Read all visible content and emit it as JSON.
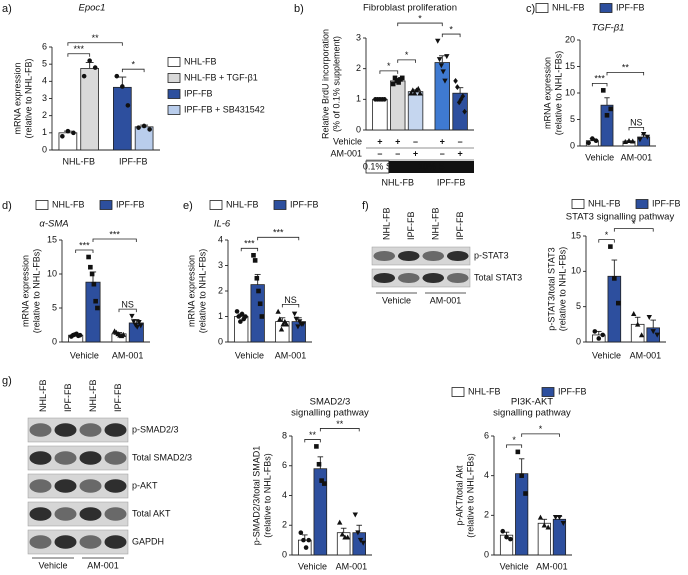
{
  "chart_data": [
    {
      "type": "bar",
      "panel": "a)",
      "title": "Epoc1",
      "ylabel": [
        "mRNA expression",
        "(relative to NHL-FB)"
      ],
      "ylim": [
        0,
        6
      ],
      "yticks": [
        0,
        1,
        2,
        3,
        4,
        5,
        6
      ],
      "legend": [
        {
          "name": "NHL-FB",
          "color": "#ffffff"
        },
        {
          "name": "NHL-FB + TGF-β1",
          "color": "#d9d9d9"
        },
        {
          "name": "IPF-FB",
          "color": "#2d4f9e"
        },
        {
          "name": "IPF-FB + SB431542",
          "color": "#b9cdec"
        }
      ],
      "groups": [
        {
          "label": "NHL-FB",
          "bars": [
            {
              "color": "#ffffff",
              "marker": "circle",
              "value": 1,
              "error": 0.1,
              "points": [
                0.8,
                1.1,
                1.0
              ]
            },
            {
              "color": "#d9d9d9",
              "marker": "circle",
              "value": 4.75,
              "error": 0.35,
              "points": [
                4.3,
                5.2,
                4.8
              ]
            }
          ]
        },
        {
          "label": "IPF-FB",
          "color": "#2a73c0",
          "bars": [
            {
              "color": "#2d4f9e",
              "marker": "circle",
              "value": 3.65,
              "error": 0.6,
              "points": [
                4.3,
                3.7,
                2.6
              ]
            },
            {
              "color": "#b9cdec",
              "marker": "circle",
              "value": 1.35,
              "error": 0.1,
              "points": [
                1.3,
                1.4,
                1.2
              ]
            }
          ]
        }
      ],
      "significance": [
        {
          "label": "***",
          "from": 0,
          "to": 1
        },
        {
          "label": "*",
          "from": 2,
          "to": 3
        },
        {
          "label": "**",
          "from": 0,
          "to": 2
        }
      ]
    },
    {
      "type": "bar",
      "panel": "b)",
      "title": "Fibroblast proliferation",
      "ylabel": [
        "Relative BrdU incorporation",
        "(% of 0.1% supplement)"
      ],
      "ylim": [
        0,
        3
      ],
      "yticks": [
        0,
        1,
        2,
        3
      ],
      "groups": [
        {
          "label": "NHL-FB",
          "bars": [
            {
              "color": "#ffffff",
              "marker": "circle",
              "value": 1,
              "error": 0.02,
              "points": [
                1.0,
                1.0,
                1.0,
                1.0,
                1.0
              ]
            },
            {
              "color": "#d9d9d9",
              "marker": "square",
              "value": 1.6,
              "error": 0.08,
              "points": [
                1.5,
                1.7,
                1.6,
                1.55,
                1.65,
                1.7
              ]
            },
            {
              "color": "#c5d6ef",
              "marker": "triangle",
              "value": 1.25,
              "error": 0.06,
              "points": [
                1.2,
                1.3,
                1.2,
                1.3,
                1.35,
                1.2
              ]
            }
          ]
        },
        {
          "label": "IPF-FB",
          "color": "#2a73c0",
          "bars": [
            {
              "color": "#3f7ad1",
              "marker": "triangle-down",
              "value": 2.2,
              "error": 0.22,
              "points": [
                2.9,
                2.3,
                2.1,
                1.9,
                1.6,
                2.4
              ]
            },
            {
              "color": "#2d4f9e",
              "marker": "diamond",
              "value": 1.2,
              "error": 0.18,
              "points": [
                1.6,
                1.4,
                0.9,
                1.0,
                1.1,
                0.6
              ]
            }
          ]
        }
      ],
      "table": {
        "rows": [
          {
            "label": "Vehicle",
            "cells": [
              "+",
              "+",
              "–",
              "+",
              "–"
            ]
          },
          {
            "label": "AM-001",
            "color": "#2a73c0",
            "cells": [
              "–",
              "–",
              "+",
              "–",
              "+"
            ]
          }
        ],
        "supplements": [
          "0.1% S",
          "10% S"
        ]
      },
      "significance": [
        {
          "label": "*",
          "from": 0,
          "to": 1
        },
        {
          "label": "*",
          "from": 1,
          "to": 2
        },
        {
          "label": "*",
          "from": 3,
          "to": 4
        },
        {
          "label": "*",
          "from": 1,
          "to": 3
        }
      ]
    },
    {
      "type": "bar",
      "panel": "c)",
      "title": "TGF-β1",
      "ylabel": [
        "mRNA expression",
        "(relative to NHL-FBs)"
      ],
      "ylim": [
        0,
        20
      ],
      "yticks": [
        0,
        5,
        10,
        15,
        20
      ],
      "legend": [
        {
          "name": "NHL-FB",
          "color": "#ffffff"
        },
        {
          "name": "IPF-FB",
          "color": "#2d4f9e"
        }
      ],
      "groups": [
        {
          "label": "Vehicle",
          "bars": [
            {
              "color": "#ffffff",
              "marker": "circle",
              "value": 1,
              "error": 0.4,
              "points": [
                0.6,
                1.4,
                1.0
              ]
            },
            {
              "color": "#2d4f9e",
              "marker": "square",
              "value": 7.7,
              "error": 1.4,
              "points": [
                10.5,
                5.8,
                7.0
              ]
            }
          ]
        },
        {
          "label": "AM-001",
          "color": "#2a73c0",
          "bars": [
            {
              "color": "#ffffff",
              "marker": "triangle",
              "value": 0.9,
              "error": 0.1,
              "points": [
                0.8,
                1.0,
                0.9
              ]
            },
            {
              "color": "#2d4f9e",
              "marker": "triangle-down",
              "value": 1.7,
              "error": 0.4,
              "points": [
                1.2,
                2.2,
                1.7
              ]
            }
          ]
        }
      ],
      "significance": [
        {
          "label": "***",
          "from": 0,
          "to": 1
        },
        {
          "label": "NS",
          "from": 2,
          "to": 3
        },
        {
          "label": "**",
          "from": 1,
          "to": 3
        }
      ]
    },
    {
      "type": "bar",
      "panel": "d)",
      "title": "α-SMA",
      "ylabel": [
        "mRNA expression",
        "(relative to NHL-FBs)"
      ],
      "ylim": [
        0,
        15
      ],
      "yticks": [
        0,
        5,
        10,
        15
      ],
      "legend": [
        {
          "name": "NHL-FB",
          "color": "#ffffff"
        },
        {
          "name": "IPF-FB",
          "color": "#2d4f9e"
        }
      ],
      "groups": [
        {
          "label": "Vehicle",
          "bars": [
            {
              "color": "#ffffff",
              "marker": "circle",
              "value": 1,
              "error": 0.1,
              "points": [
                0.8,
                1.0,
                1.1,
                1.2,
                0.9,
                1.0
              ]
            },
            {
              "color": "#2d4f9e",
              "marker": "square",
              "value": 8.8,
              "error": 1.5,
              "points": [
                12.5,
                11.0,
                10.0,
                8.5,
                6.0,
                5.0
              ]
            }
          ]
        },
        {
          "label": "AM-001",
          "color": "#2a73c0",
          "bars": [
            {
              "color": "#ffffff",
              "marker": "triangle",
              "value": 1.2,
              "error": 0.2,
              "points": [
                1.6,
                1.4,
                1.2,
                1.0,
                0.9,
                1.1
              ]
            },
            {
              "color": "#2d4f9e",
              "marker": "triangle-down",
              "value": 2.8,
              "error": 0.5,
              "points": [
                3.8,
                3.0,
                2.5,
                2.2,
                2.9,
                2.4
              ]
            }
          ]
        }
      ],
      "significance": [
        {
          "label": "***",
          "from": 0,
          "to": 1
        },
        {
          "label": "NS",
          "from": 2,
          "to": 3
        },
        {
          "label": "***",
          "from": 1,
          "to": 3
        }
      ]
    },
    {
      "type": "bar",
      "panel": "e)",
      "title": "IL-6",
      "ylabel": [
        "mRNA expression",
        "(relative to NHL-FBs)"
      ],
      "ylim": [
        0,
        4
      ],
      "yticks": [
        0,
        1,
        2,
        3,
        4
      ],
      "legend": [
        {
          "name": "NHL-FB",
          "color": "#ffffff"
        },
        {
          "name": "IPF-FB",
          "color": "#2d4f9e"
        }
      ],
      "groups": [
        {
          "label": "Vehicle",
          "bars": [
            {
              "color": "#ffffff",
              "marker": "circle",
              "value": 1,
              "error": 0.1,
              "points": [
                1.2,
                1.0,
                0.8,
                1.1,
                0.9,
                1.0
              ]
            },
            {
              "color": "#2d4f9e",
              "marker": "square",
              "value": 2.25,
              "error": 0.4,
              "points": [
                3.4,
                3.2,
                2.5,
                2.0,
                1.5,
                1.0
              ]
            }
          ]
        },
        {
          "label": "AM-001",
          "color": "#2a73c0",
          "bars": [
            {
              "color": "#ffffff",
              "marker": "triangle",
              "value": 0.8,
              "error": 0.15,
              "points": [
                1.2,
                0.9,
                0.5,
                0.7,
                0.8,
                0.7
              ]
            },
            {
              "color": "#2d4f9e",
              "marker": "triangle-down",
              "value": 0.8,
              "error": 0.15,
              "points": [
                1.1,
                0.9,
                0.6,
                0.8,
                0.7,
                0.7
              ]
            }
          ]
        }
      ],
      "significance": [
        {
          "label": "***",
          "from": 0,
          "to": 1
        },
        {
          "label": "NS",
          "from": 2,
          "to": 3
        },
        {
          "label": "***",
          "from": 1,
          "to": 3
        }
      ]
    },
    {
      "type": "blot",
      "panel": "f)",
      "lanes": [
        "NHL-FB",
        "IPF-FB",
        "NHL-FB",
        "IPF-FB"
      ],
      "bands": [
        "p-STAT3",
        "Total STAT3"
      ],
      "groups": [
        {
          "label": "Vehicle"
        },
        {
          "label": "AM-001",
          "color": "#2a73c0"
        }
      ]
    },
    {
      "type": "bar",
      "title": "STAT3 signalling pathway",
      "ylabel": [
        "p-STAT3/total STAT3",
        "(relative to NHL-FBs)"
      ],
      "ylim": [
        0,
        15
      ],
      "yticks": [
        0,
        5,
        10,
        15
      ],
      "legend": [
        {
          "name": "NHL-FB",
          "color": "#ffffff"
        },
        {
          "name": "IPF-FB",
          "color": "#2d4f9e"
        }
      ],
      "groups": [
        {
          "label": "Vehicle",
          "bars": [
            {
              "color": "#ffffff",
              "marker": "circle",
              "value": 1,
              "error": 0.5,
              "points": [
                1.5,
                0.5,
                1.0
              ]
            },
            {
              "color": "#2d4f9e",
              "marker": "square",
              "value": 9.3,
              "error": 2.3,
              "points": [
                13.5,
                9.0,
                5.5
              ]
            }
          ]
        },
        {
          "label": "AM-001",
          "color": "#2a73c0",
          "bars": [
            {
              "color": "#ffffff",
              "marker": "triangle",
              "value": 2.5,
              "error": 1.0,
              "points": [
                4.0,
                2.5,
                1.0
              ]
            },
            {
              "color": "#2d4f9e",
              "marker": "triangle-down",
              "value": 2.0,
              "error": 1.1,
              "points": [
                3.5,
                1.5,
                1.0
              ]
            }
          ]
        }
      ],
      "significance": [
        {
          "label": "*",
          "from": 0,
          "to": 1
        },
        {
          "label": "*",
          "from": 1,
          "to": 3
        }
      ]
    },
    {
      "type": "blot",
      "panel": "g)",
      "lanes": [
        "NHL-FB",
        "IPF-FB",
        "NHL-FB",
        "IPF-FB"
      ],
      "bands": [
        "p-SMAD2/3",
        "Total SMAD2/3",
        "p-AKT",
        "Total AKT",
        "GAPDH"
      ],
      "groups": [
        {
          "label": "Vehicle"
        },
        {
          "label": "AM-001",
          "color": "#2a73c0"
        }
      ]
    },
    {
      "type": "bar",
      "title": [
        "SMAD2/3",
        "signalling pathway"
      ],
      "ylabel": [
        "p-SMAD2/3/total SMAD1",
        "(relative to NHL-FBs)"
      ],
      "ylim": [
        0,
        8
      ],
      "yticks": [
        0,
        2,
        4,
        6,
        8
      ],
      "legend": [
        {
          "name": "NHL-FB",
          "color": "#ffffff"
        },
        {
          "name": "IPF-FB",
          "color": "#2d4f9e"
        }
      ],
      "groups": [
        {
          "label": "Vehicle",
          "bars": [
            {
              "color": "#ffffff",
              "marker": "circle",
              "value": 1,
              "error": 0.35,
              "points": [
                1.5,
                1.0,
                0.5,
                1.0
              ]
            },
            {
              "color": "#2d4f9e",
              "marker": "square",
              "value": 5.8,
              "error": 0.8,
              "points": [
                7.3,
                6.1,
                5.0,
                4.8
              ]
            }
          ]
        },
        {
          "label": "AM-001",
          "color": "#2a73c0",
          "bars": [
            {
              "color": "#ffffff",
              "marker": "triangle",
              "value": 1.5,
              "error": 0.3,
              "points": [
                2.2,
                1.4,
                1.2,
                1.2
              ]
            },
            {
              "color": "#2d4f9e",
              "marker": "triangle-down",
              "value": 1.5,
              "error": 0.5,
              "points": [
                2.7,
                1.5,
                1.0,
                0.8
              ]
            }
          ]
        }
      ],
      "significance": [
        {
          "label": "**",
          "from": 0,
          "to": 1
        },
        {
          "label": "**",
          "from": 1,
          "to": 3
        }
      ]
    },
    {
      "type": "bar",
      "title": [
        "PI3K-AKT",
        "signalling pathway"
      ],
      "ylabel": [
        "p-AKT/total Akt",
        "(relative to NHL-FBs)"
      ],
      "ylim": [
        0,
        6
      ],
      "yticks": [
        0,
        2,
        4,
        6
      ],
      "groups": [
        {
          "label": "Vehicle",
          "bars": [
            {
              "color": "#ffffff",
              "marker": "circle",
              "value": 1,
              "error": 0.15,
              "points": [
                1.2,
                0.9,
                0.8
              ]
            },
            {
              "color": "#2d4f9e",
              "marker": "square",
              "value": 4.1,
              "error": 0.75,
              "points": [
                5.2,
                4.0,
                3.1
              ]
            }
          ]
        },
        {
          "label": "AM-001",
          "color": "#2a73c0",
          "bars": [
            {
              "color": "#ffffff",
              "marker": "triangle",
              "value": 1.6,
              "error": 0.2,
              "points": [
                1.9,
                1.5,
                1.4
              ]
            },
            {
              "color": "#2d4f9e",
              "marker": "triangle-down",
              "value": 1.8,
              "error": 0.15,
              "points": [
                1.9,
                1.9,
                1.6
              ]
            }
          ]
        }
      ],
      "significance": [
        {
          "label": "*",
          "from": 0,
          "to": 1
        },
        {
          "label": "*",
          "from": 1,
          "to": 3
        }
      ]
    }
  ]
}
